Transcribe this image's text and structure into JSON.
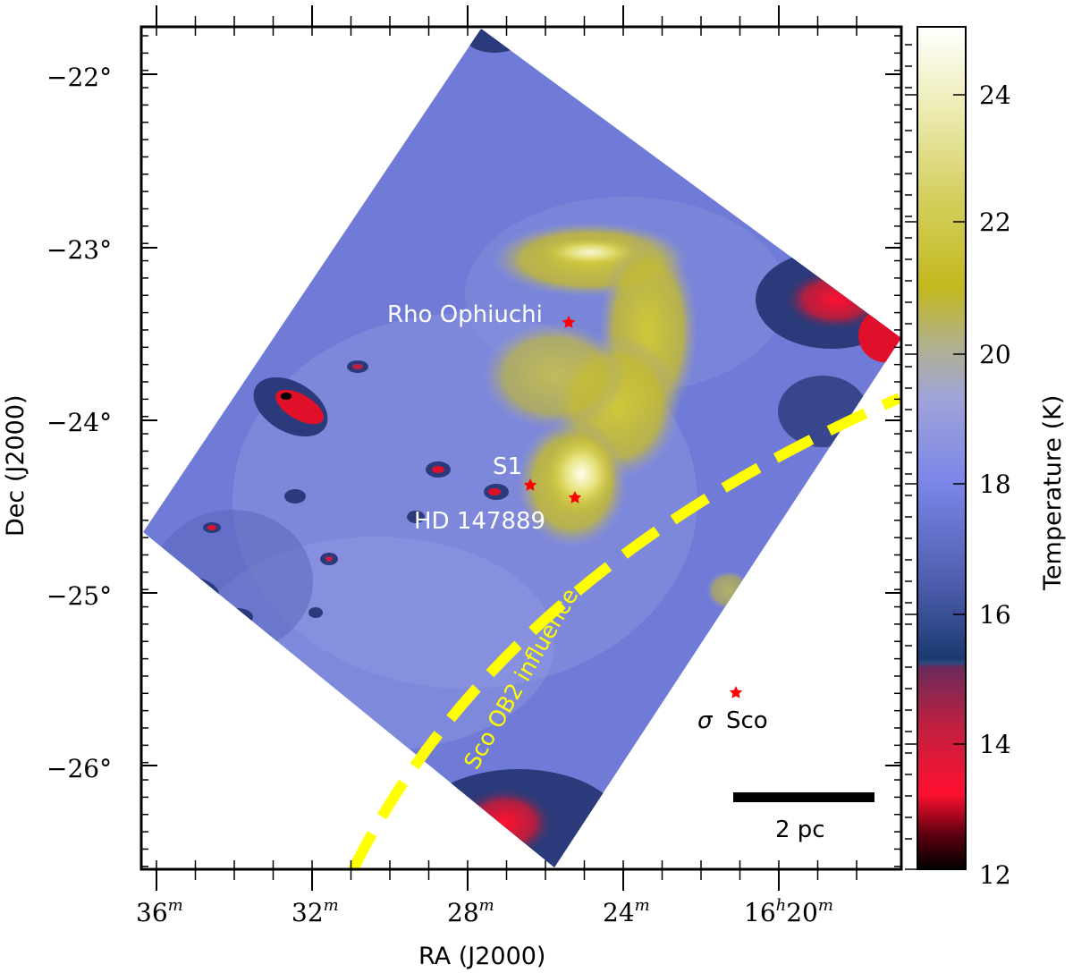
{
  "figure": {
    "x_axis": {
      "title": "RA (J2000)",
      "ticks": [
        {
          "label": "36",
          "sup": "m"
        },
        {
          "label": "32",
          "sup": "m"
        },
        {
          "label": "28",
          "sup": "m"
        },
        {
          "label": "24",
          "sup": "m"
        },
        {
          "label": "16",
          "sup": "h",
          "label2": "20",
          "sup2": "m"
        }
      ]
    },
    "y_axis": {
      "title": "Dec (J2000)",
      "ticks": [
        "−22°",
        "−23°",
        "−24°",
        "−25°",
        "−26°"
      ]
    },
    "colorbar": {
      "title": "Temperature (K)",
      "ticks": [
        "24",
        "22",
        "20",
        "18",
        "16",
        "14",
        "12"
      ],
      "range": [
        12,
        25
      ]
    },
    "annotations": {
      "rho_oph": "Rho Ophiuchi",
      "s1": "S1",
      "hd": "HD 147889",
      "sigma_symbol": "σ",
      "sigma_name": "Sco",
      "sco_ob2": "Sco OB2 influence",
      "scalebar": "2 pc"
    },
    "colors": {
      "map_base": "#6f7bd6",
      "warm": "#c9c02a",
      "cold": "#e0102a",
      "dark_blue": "#2a3a7a",
      "dashed_line": "#ffff00",
      "star_marker": "#ff0000"
    }
  }
}
